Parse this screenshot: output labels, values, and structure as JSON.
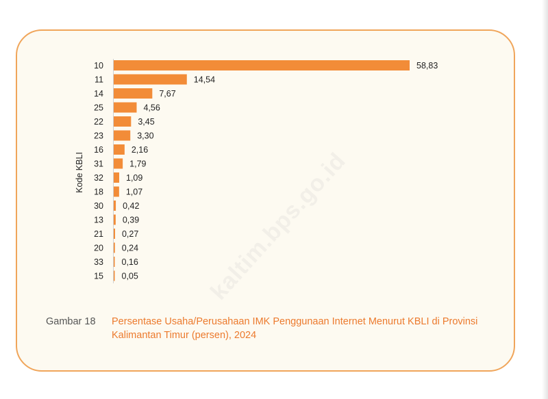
{
  "chart_data": {
    "type": "bar",
    "orientation": "horizontal",
    "ylabel": "Kode KBLI",
    "xlabel": "",
    "categories": [
      "10",
      "11",
      "14",
      "25",
      "22",
      "23",
      "16",
      "31",
      "32",
      "18",
      "30",
      "13",
      "21",
      "20",
      "33",
      "15"
    ],
    "values": [
      58.83,
      14.54,
      7.67,
      4.56,
      3.45,
      3.3,
      2.16,
      1.79,
      1.09,
      1.07,
      0.42,
      0.39,
      0.27,
      0.24,
      0.16,
      0.05
    ],
    "value_labels": [
      "58,83",
      "14,54",
      "7,67",
      "4,56",
      "3,45",
      "3,30",
      "2,16",
      "1,79",
      "1,09",
      "1,07",
      "0,42",
      "0,39",
      "0,27",
      "0,24",
      "0,16",
      "0,05"
    ],
    "xlim": [
      0,
      60
    ],
    "grid": false,
    "bar_color": "#f28c38"
  },
  "caption": {
    "number": "Gambar 18",
    "text": "Persentase Usaha/Perusahaan IMK Penggunaan Internet Menurut KBLI di Provinsi Kalimantan Timur (persen), 2024"
  },
  "watermark": "kaltim.bps.go.id",
  "colors": {
    "card_border": "#f0a55a",
    "card_background": "#fdfaf1",
    "caption_title": "#ec7a2d"
  }
}
